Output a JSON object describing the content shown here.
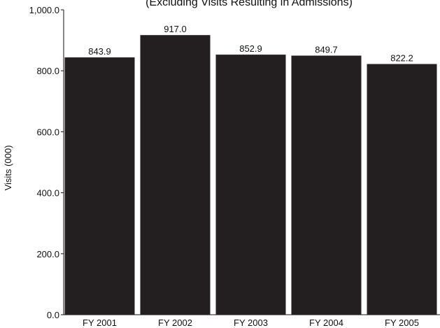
{
  "chart_data": {
    "type": "bar",
    "subtitle": "(Excluding Visits Resulting in Admissions)",
    "ylabel": "Visits (000)",
    "xlabel": "",
    "categories": [
      "FY 2001",
      "FY 2002",
      "FY 2003",
      "FY 2004",
      "FY 2005"
    ],
    "values": [
      843.9,
      917.0,
      852.9,
      849.7,
      822.2
    ],
    "value_labels": [
      "843.9",
      "917.0",
      "852.9",
      "849.7",
      "822.2"
    ],
    "ylim": [
      0,
      1000
    ],
    "yticks": [
      0,
      200,
      400,
      600,
      800,
      1000
    ],
    "ytick_labels": [
      "0.0",
      "200.0",
      "400.0",
      "600.0",
      "800.0",
      "1,000.0"
    ],
    "grid": false,
    "legend": "none",
    "colors": {
      "bar": "#231f20",
      "axis": "#111111",
      "text": "#111111",
      "background": "#ffffff"
    }
  }
}
